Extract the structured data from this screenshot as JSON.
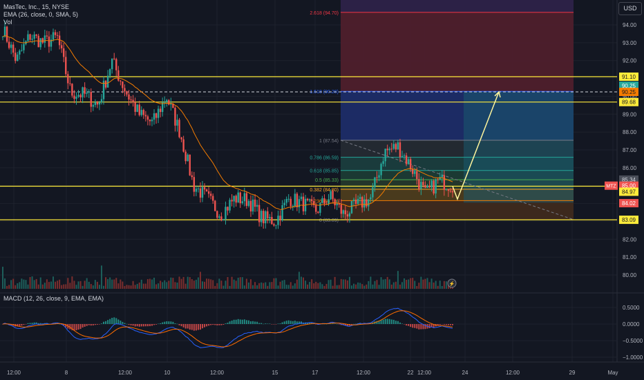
{
  "legend": {
    "title": "MasTec, Inc., 15, NYSE",
    "ema": "EMA (26, close, 0, SMA, 5)",
    "vol": "Vol"
  },
  "currency": "USD",
  "macd_label": "MACD (12, 26, close, 9, EMA, EMA)",
  "ticker_tag": "MTZ",
  "colors": {
    "bg": "#131722",
    "up": "#26a69a",
    "down": "#ef5350",
    "ema": "#f57c00",
    "level": "#ffeb3b",
    "macd": "#2962ff",
    "signal": "#ff6d00",
    "fib_text_top": "#f23645",
    "fib_text_blue": "#2962ff",
    "target_path": "#fff59d"
  },
  "chart_data": [
    {
      "type": "candlestick",
      "price_axis": {
        "ticks": [
          "94.00",
          "93.00",
          "92.00",
          "91.00",
          "90.00",
          "89.00",
          "88.00",
          "87.00",
          "86.00",
          "85.00",
          "84.00",
          "83.00",
          "82.00",
          "81.00",
          "80.00"
        ],
        "range": [
          79.4,
          95.3
        ]
      },
      "time_axis": {
        "labels": [
          "12:00",
          "8",
          "12:00",
          "10",
          "12:00",
          "15",
          "17",
          "12:00",
          "22",
          "12:00",
          "24",
          "12:00",
          "29",
          "May",
          "12:00"
        ]
      },
      "horizontal_levels": [
        91.1,
        89.68,
        83.09,
        84.97
      ],
      "dashed_levels": [
        90.25
      ],
      "price_tags": [
        {
          "text": "91.10",
          "style": "level"
        },
        {
          "text": "90.25",
          "style": "target"
        },
        {
          "text": "90.25",
          "style": "orange"
        },
        {
          "text": "89.68",
          "style": "level"
        },
        {
          "text": "85.34",
          "style": "grey"
        },
        {
          "text": "85.00",
          "style": "red"
        },
        {
          "text": "84.97",
          "style": "level"
        },
        {
          "text": "84.02",
          "style": "red"
        },
        {
          "text": "83.09",
          "style": "level"
        }
      ],
      "fibonacci": [
        {
          "label": "2.618 (94.70)",
          "price": 94.7
        },
        {
          "label": "1.618 (90.28)",
          "price": 90.28
        },
        {
          "label": "1 (87.54)",
          "price": 87.54
        },
        {
          "label": "0.786 (86.59)",
          "price": 86.59
        },
        {
          "label": "0.618 (85.85)",
          "price": 85.85
        },
        {
          "label": "0.5 (85.33)",
          "price": 85.33
        },
        {
          "label": "0.382 (84.80)",
          "price": 84.8
        },
        {
          "label": "0.236 (84.16)",
          "price": 84.16
        },
        {
          "label": "0 (83.09)",
          "price": 83.09
        }
      ],
      "projection_path": [
        [
          84.97,
          84.25
        ],
        [
          90.25,
          90.25
        ]
      ],
      "close_anchor_prices": [
        93.8,
        92.0,
        93.4,
        93.0,
        93.3,
        90.2,
        90.1,
        89.5,
        92.0,
        90.3,
        89.0,
        88.5,
        90.0,
        88.0,
        85.0,
        84.3,
        83.4,
        84.3,
        84.2,
        83.2,
        83.0,
        84.3,
        84.0,
        83.6,
        84.4,
        83.4,
        83.9,
        84.3,
        86.9,
        87.2,
        86.0,
        84.5,
        85.3,
        85.0
      ]
    },
    {
      "type": "macd",
      "ticks": [
        "0.5000",
        "0.0000",
        "−0.5000",
        "−1.0000"
      ],
      "range": [
        -1.15,
        0.72
      ]
    }
  ]
}
